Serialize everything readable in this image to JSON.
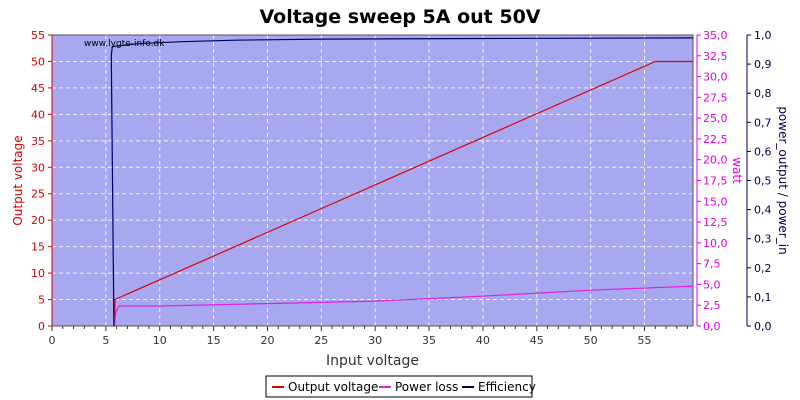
{
  "chart_data": {
    "type": "line",
    "title": "Voltage sweep 5A out 50V",
    "xlabel": "Input voltage",
    "watermark": "www.lygte-info.dk",
    "xlim": [
      0,
      59.5
    ],
    "x_ticks": [
      "0",
      "5",
      "10",
      "15",
      "20",
      "25",
      "30",
      "35",
      "40",
      "45",
      "50",
      "55"
    ],
    "axes": {
      "left": {
        "label": "Output voltage",
        "color": "#d80000",
        "lim": [
          0,
          55
        ],
        "ticks": [
          "0",
          "5",
          "10",
          "15",
          "20",
          "25",
          "30",
          "35",
          "40",
          "45",
          "50",
          "55"
        ]
      },
      "right1": {
        "label": "watt",
        "color": "#e000e0",
        "lim": [
          0,
          35
        ],
        "ticks": [
          "0,0",
          "2,5",
          "5,0",
          "7,5",
          "10,0",
          "12,5",
          "15,0",
          "17,5",
          "20,0",
          "22,5",
          "25,0",
          "27,5",
          "30,0",
          "32,5",
          "35,0"
        ]
      },
      "right2": {
        "label": "power_output / power_in",
        "color": "#000050",
        "lim": [
          0,
          1.0
        ],
        "ticks": [
          "0,0",
          "0,1",
          "0,2",
          "0,3",
          "0,4",
          "0,5",
          "0,6",
          "0,7",
          "0,8",
          "0,9",
          "1,0"
        ]
      }
    },
    "grid": true,
    "plot_background": "#a8a8f0",
    "legend_placement": "bottom-center",
    "series": [
      {
        "name": "Output voltage",
        "axis": "left",
        "color": "#e00000",
        "x": [
          5.8,
          5.85,
          56,
          59.5
        ],
        "y": [
          0,
          5,
          50,
          50
        ]
      },
      {
        "name": "Power loss",
        "axis": "right1",
        "color": "#e020e0",
        "x": [
          5.8,
          5.9,
          6.2,
          10,
          20,
          30,
          40,
          50,
          59.5
        ],
        "y": [
          0,
          1.5,
          2.4,
          2.4,
          2.7,
          3.0,
          3.6,
          4.3,
          4.8
        ]
      },
      {
        "name": "Efficiency",
        "axis": "right2",
        "color": "#000060",
        "x": [
          5.75,
          5.5,
          5.6,
          8,
          12,
          17,
          25,
          40,
          59.5
        ],
        "y": [
          0.0,
          0.93,
          0.96,
          0.97,
          0.977,
          0.982,
          0.986,
          0.988,
          0.99
        ]
      }
    ]
  }
}
